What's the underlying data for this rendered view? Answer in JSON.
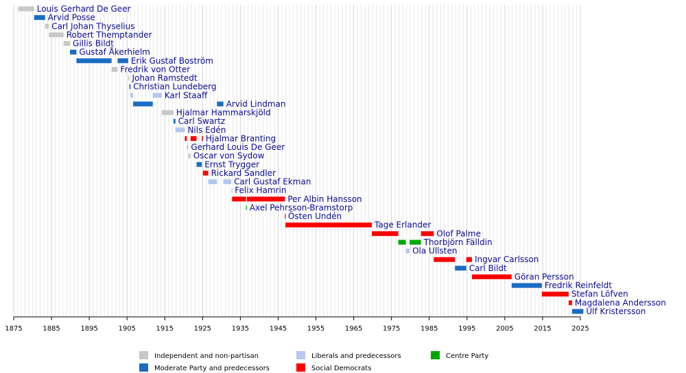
{
  "chart_data": {
    "type": "timeline",
    "xlim": [
      1875,
      2025
    ],
    "xticks": [
      1875,
      1885,
      1895,
      1905,
      1915,
      1925,
      1935,
      1945,
      1955,
      1965,
      1975,
      1985,
      1995,
      2005,
      2015,
      2025
    ],
    "minor_grid": 1,
    "series": [
      {
        "name": "Independent and non-partisan",
        "color": "#c8c8c8"
      },
      {
        "name": "Moderate Party and predecessors",
        "color": "#1a6cc4"
      },
      {
        "name": "Liberals and predecessors",
        "color": "#b4c8f0"
      },
      {
        "name": "Social Democrats",
        "color": "#ff0000"
      },
      {
        "name": "Centre Party",
        "color": "#00a800"
      }
    ],
    "rows": [
      {
        "label": "Louis Gerhard De Geer",
        "bars": [
          {
            "start": 1876.2,
            "end": 1880.4,
            "party": 0
          }
        ]
      },
      {
        "label": "Arvid Posse",
        "bars": [
          {
            "start": 1880.4,
            "end": 1883.3,
            "party": 1
          }
        ]
      },
      {
        "label": "Carl Johan Thyselius",
        "bars": [
          {
            "start": 1883.3,
            "end": 1884.3,
            "party": 0
          }
        ]
      },
      {
        "label": "Robert Themptander",
        "bars": [
          {
            "start": 1884.3,
            "end": 1888.2,
            "party": 0
          }
        ]
      },
      {
        "label": "Gillis Bildt",
        "bars": [
          {
            "start": 1888.2,
            "end": 1889.9,
            "party": 0
          }
        ]
      },
      {
        "label": "Gustaf Åkerhielm",
        "bars": [
          {
            "start": 1889.9,
            "end": 1891.6,
            "party": 1
          }
        ]
      },
      {
        "label": "Erik Gustaf Boström",
        "bars": [
          {
            "start": 1891.6,
            "end": 1900.9,
            "party": 1
          },
          {
            "start": 1902.5,
            "end": 1905.3,
            "party": 1
          }
        ]
      },
      {
        "label": "Fredrik von Otter",
        "bars": [
          {
            "start": 1900.9,
            "end": 1902.5,
            "party": 0
          }
        ]
      },
      {
        "label": "Johan Ramstedt",
        "bars": [
          {
            "start": 1905.3,
            "end": 1905.6,
            "party": 0
          }
        ]
      },
      {
        "label": "Christian Lundeberg",
        "bars": [
          {
            "start": 1905.6,
            "end": 1905.9,
            "party": 1
          }
        ]
      },
      {
        "label": "Karl Staaff",
        "bars": [
          {
            "start": 1905.9,
            "end": 1906.6,
            "party": 2
          },
          {
            "start": 1911.8,
            "end": 1914.2,
            "party": 2
          }
        ]
      },
      {
        "label": "Arvid Lindman",
        "bars": [
          {
            "start": 1906.6,
            "end": 1911.8,
            "party": 1
          },
          {
            "start": 1928.8,
            "end": 1930.5,
            "party": 1
          }
        ]
      },
      {
        "label": "Hjalmar Hammarskjöld",
        "bars": [
          {
            "start": 1914.2,
            "end": 1917.3,
            "party": 0
          }
        ]
      },
      {
        "label": "Carl Swartz",
        "bars": [
          {
            "start": 1917.3,
            "end": 1917.8,
            "party": 1
          }
        ]
      },
      {
        "label": "Nils Edén",
        "bars": [
          {
            "start": 1917.8,
            "end": 1920.3,
            "party": 2
          }
        ]
      },
      {
        "label": "Hjalmar Branting",
        "bars": [
          {
            "start": 1920.3,
            "end": 1920.8,
            "party": 3
          },
          {
            "start": 1921.8,
            "end": 1923.4,
            "party": 3
          },
          {
            "start": 1924.8,
            "end": 1925.1,
            "party": 3
          }
        ]
      },
      {
        "label": "Gerhard Louis De Geer",
        "bars": [
          {
            "start": 1920.8,
            "end": 1921.2,
            "party": 0
          }
        ]
      },
      {
        "label": "Oscar von Sydow",
        "bars": [
          {
            "start": 1921.2,
            "end": 1921.8,
            "party": 0
          }
        ]
      },
      {
        "label": "Ernst Trygger",
        "bars": [
          {
            "start": 1923.4,
            "end": 1924.8,
            "party": 1
          }
        ]
      },
      {
        "label": "Rickard Sandler",
        "bars": [
          {
            "start": 1925.1,
            "end": 1926.5,
            "party": 3
          }
        ]
      },
      {
        "label": "Carl Gustaf Ekman",
        "bars": [
          {
            "start": 1926.5,
            "end": 1928.8,
            "party": 2
          },
          {
            "start": 1930.5,
            "end": 1932.6,
            "party": 2
          }
        ]
      },
      {
        "label": "Felix Hamrin",
        "bars": [
          {
            "start": 1932.6,
            "end": 1932.8,
            "party": 2
          }
        ]
      },
      {
        "label": "Per Albin Hansson",
        "bars": [
          {
            "start": 1932.8,
            "end": 1936.5,
            "party": 3
          },
          {
            "start": 1936.7,
            "end": 1946.8,
            "party": 3
          }
        ]
      },
      {
        "label": "Axel Pehrsson-Bramstorp",
        "bars": [
          {
            "start": 1936.5,
            "end": 1936.7,
            "party": 4
          }
        ]
      },
      {
        "label": "Östen Undén",
        "bars": [
          {
            "start": 1946.8,
            "end": 1946.9,
            "party": 3
          }
        ]
      },
      {
        "label": "Tage Erlander",
        "bars": [
          {
            "start": 1946.9,
            "end": 1969.8,
            "party": 3
          }
        ]
      },
      {
        "label": "Olof Palme",
        "bars": [
          {
            "start": 1969.8,
            "end": 1976.8,
            "party": 3
          },
          {
            "start": 1982.8,
            "end": 1986.2,
            "party": 3
          }
        ]
      },
      {
        "label": "Thorbjörn Fälldin",
        "bars": [
          {
            "start": 1976.8,
            "end": 1978.8,
            "party": 4
          },
          {
            "start": 1979.8,
            "end": 1982.8,
            "party": 4
          }
        ]
      },
      {
        "label": "Ola Ullsten",
        "bars": [
          {
            "start": 1978.8,
            "end": 1979.8,
            "party": 2
          }
        ]
      },
      {
        "label": "Ingvar Carlsson",
        "bars": [
          {
            "start": 1986.2,
            "end": 1991.8,
            "party": 3
          },
          {
            "start": 1994.8,
            "end": 1996.3,
            "party": 3
          }
        ]
      },
      {
        "label": "Carl Bildt",
        "bars": [
          {
            "start": 1991.8,
            "end": 1994.8,
            "party": 1
          }
        ]
      },
      {
        "label": "Göran Persson",
        "bars": [
          {
            "start": 1996.3,
            "end": 2006.8,
            "party": 3
          }
        ]
      },
      {
        "label": "Fredrik Reinfeldt",
        "bars": [
          {
            "start": 2006.8,
            "end": 2014.8,
            "party": 1
          }
        ]
      },
      {
        "label": "Stefan Löfven",
        "bars": [
          {
            "start": 2014.8,
            "end": 2021.9,
            "party": 3
          }
        ]
      },
      {
        "label": "Magdalena Andersson",
        "bars": [
          {
            "start": 2021.9,
            "end": 2022.8,
            "party": 3
          }
        ]
      },
      {
        "label": "Ulf Kristersson",
        "bars": [
          {
            "start": 2022.8,
            "end": 2025.8,
            "party": 1
          }
        ]
      }
    ]
  }
}
